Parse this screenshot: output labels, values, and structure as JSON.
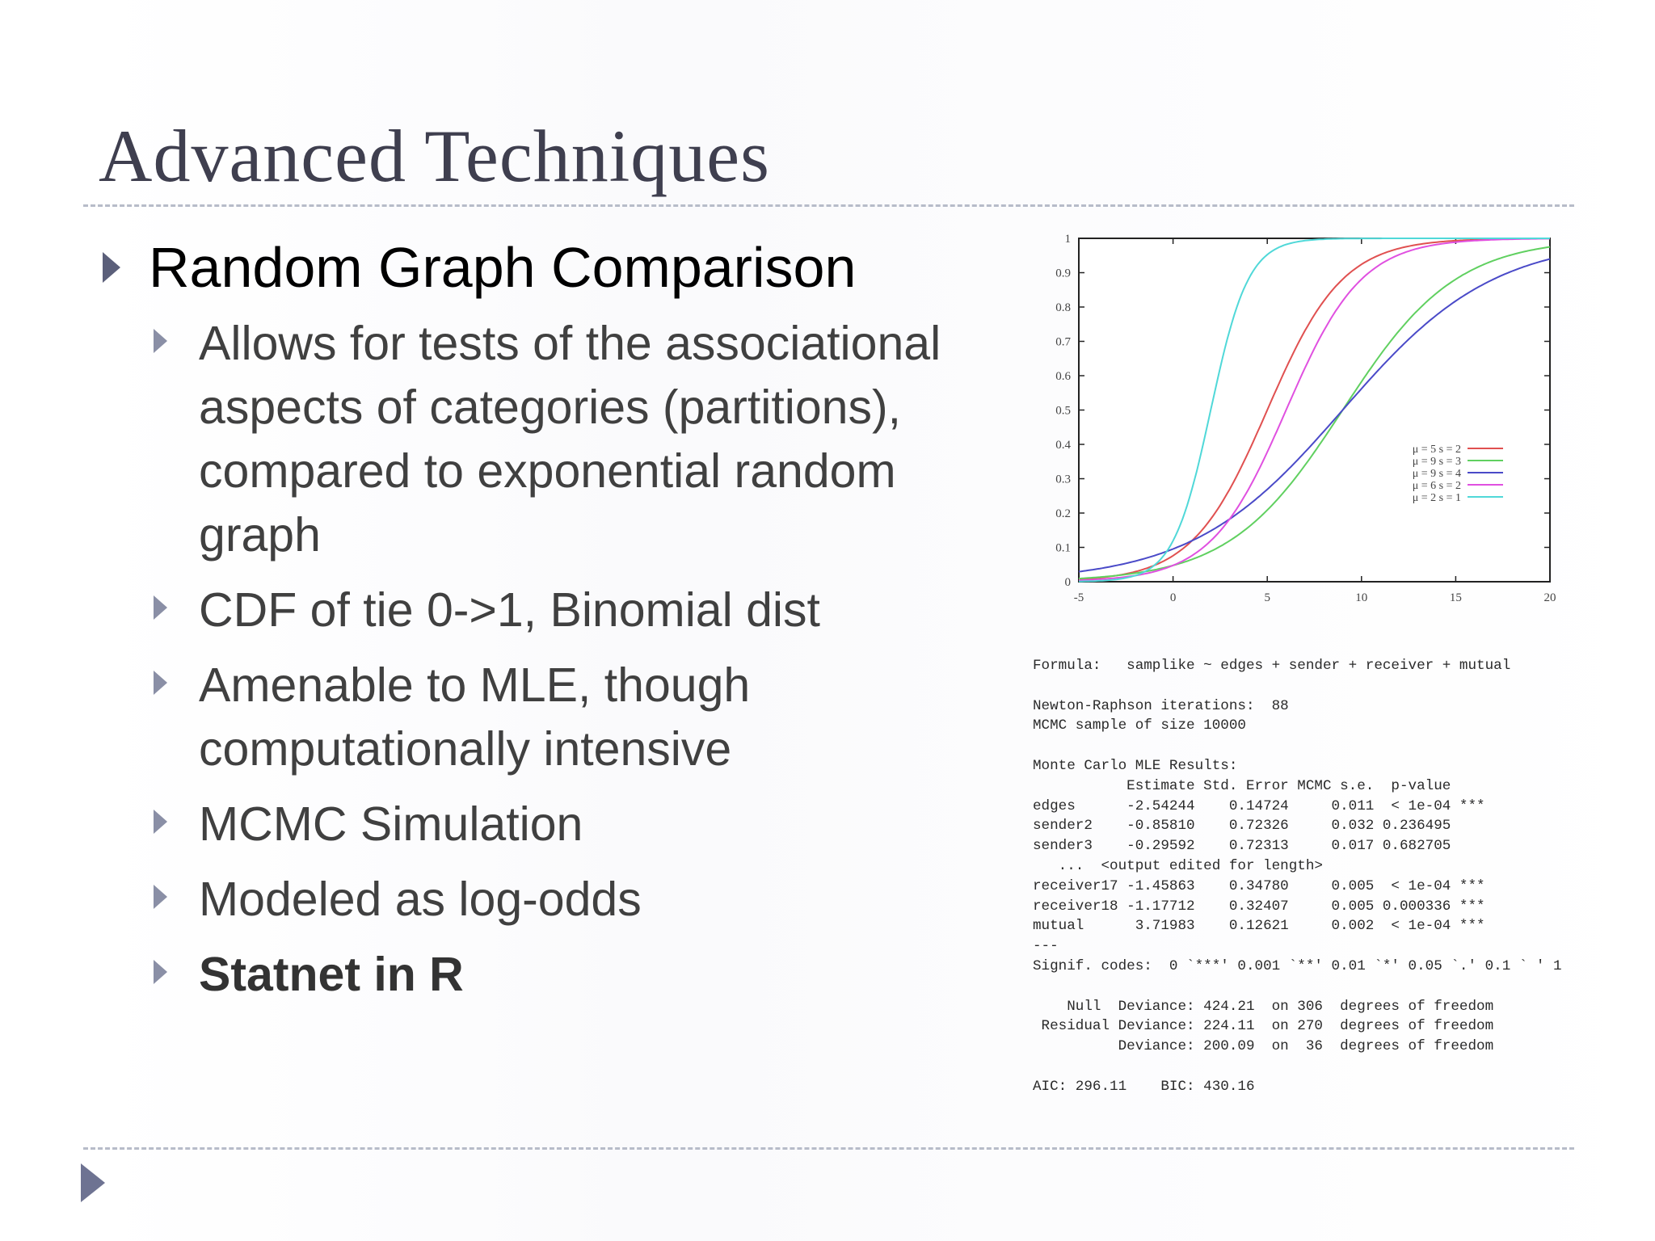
{
  "slide": {
    "title": "Advanced Techniques",
    "main_bullet": "Random Graph Comparison",
    "sub_bullets": [
      {
        "text": "Allows for tests of the associational aspects of categories (partitions), compared to exponential random graph",
        "bold": false
      },
      {
        "text": "CDF of tie 0->1, Binomial dist",
        "bold": false
      },
      {
        "text": "Amenable to MLE, though computationally intensive",
        "bold": false
      },
      {
        "text": "MCMC Simulation",
        "bold": false
      },
      {
        "text": "Modeled as log-odds",
        "bold": false
      },
      {
        "text": "Statnet in R",
        "bold": true
      }
    ]
  },
  "chart_data": {
    "type": "line",
    "title": "",
    "xlabel": "",
    "ylabel": "",
    "xlim": [
      -5,
      20
    ],
    "ylim": [
      0,
      1
    ],
    "x_ticks": [
      "-5",
      "0",
      "5",
      "10",
      "15",
      "20"
    ],
    "y_ticks": [
      "0",
      "0.1",
      "0.2",
      "0.3",
      "0.4",
      "0.5",
      "0.6",
      "0.7",
      "0.8",
      "0.9",
      "1"
    ],
    "legend_position": "right",
    "series": [
      {
        "name": "μ = 5 s = 2",
        "color": "#e05050",
        "mu": 5,
        "s": 2
      },
      {
        "name": "μ = 9 s = 3",
        "color": "#60d060",
        "mu": 9,
        "s": 3
      },
      {
        "name": "μ = 9 s = 4",
        "color": "#4a4ac8",
        "mu": 9,
        "s": 4
      },
      {
        "name": "μ = 6 s = 2",
        "color": "#e050e0",
        "mu": 6,
        "s": 2
      },
      {
        "name": "μ = 2 s = 1",
        "color": "#50d8d8",
        "mu": 2,
        "s": 1
      }
    ]
  },
  "r_output": {
    "lines": [
      "Formula:   samplike ~ edges + sender + receiver + mutual",
      "",
      "Newton-Raphson iterations:  88",
      "MCMC sample of size 10000",
      "",
      "Monte Carlo MLE Results:",
      "           Estimate Std. Error MCMC s.e.  p-value",
      "edges      -2.54244    0.14724     0.011  < 1e-04 ***",
      "sender2    -0.85810    0.72326     0.032 0.236495",
      "sender3    -0.29592    0.72313     0.017 0.682705",
      "   ...  <output edited for length>",
      "receiver17 -1.45863    0.34780     0.005  < 1e-04 ***",
      "receiver18 -1.17712    0.32407     0.005 0.000336 ***",
      "mutual      3.71983    0.12621     0.002  < 1e-04 ***",
      "---",
      "Signif. codes:  0 `***' 0.001 `**' 0.01 `*' 0.05 `.' 0.1 ` ' 1",
      "",
      "    Null  Deviance: 424.21  on 306  degrees of freedom",
      " Residual Deviance: 224.11  on 270  degrees of freedom",
      "          Deviance: 200.09  on  36  degrees of freedom",
      "",
      "AIC: 296.11    BIC: 430.16"
    ]
  }
}
